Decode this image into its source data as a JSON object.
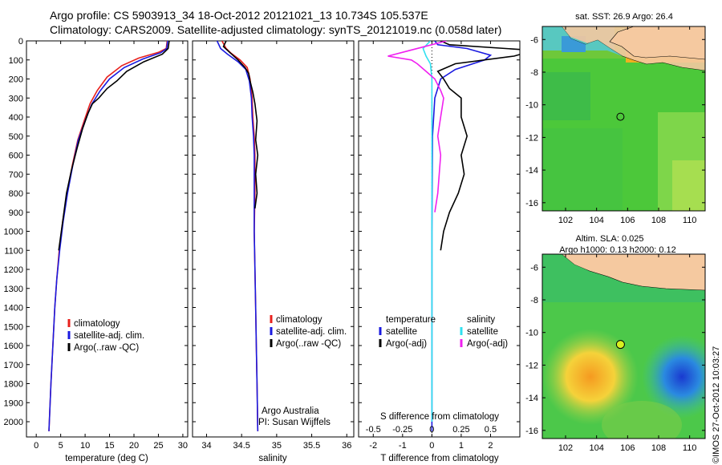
{
  "title_line1": "Argo profile: CS 5903913_34 18-Oct-2012 20121021_13 10.734S 105.537E",
  "title_line2": "Climatology: CARS2009. Satellite-adjusted climatology: synTS_20121019.nc (0.058d later)",
  "footer_vertical": "©IMOS 27-Oct-2012 10:03:27",
  "colors": {
    "climatology": "#e8201c",
    "satellite": "#1a1ae0",
    "argo": "#000000",
    "salinity_sat": "#30e0f0",
    "salinity_argo": "#f020f0",
    "land": "#f5c9a0"
  },
  "chart_data": [
    {
      "type": "line",
      "name": "temperature-profile",
      "xlabel": "temperature (deg C)",
      "ylabel": "",
      "xlim": [
        -2,
        31
      ],
      "ylim": [
        2080,
        0
      ],
      "x_ticks": [
        0,
        5,
        10,
        15,
        20,
        25,
        30
      ],
      "y_ticks": [
        0,
        100,
        200,
        300,
        400,
        500,
        600,
        700,
        800,
        900,
        1000,
        1100,
        1200,
        1300,
        1400,
        1500,
        1600,
        1700,
        1800,
        1900,
        2000
      ],
      "legend": [
        "climatology",
        "satellite-adj. clim.",
        "Argo(..raw -QC)"
      ],
      "series": [
        {
          "name": "climatology",
          "color": "#e8201c",
          "points": [
            [
              26.8,
              0
            ],
            [
              26.6,
              40
            ],
            [
              25,
              60
            ],
            [
              21,
              90
            ],
            [
              17.5,
              130
            ],
            [
              14.5,
              190
            ],
            [
              12.5,
              260
            ],
            [
              11,
              330
            ],
            [
              9.8,
              420
            ],
            [
              8.5,
              520
            ],
            [
              7.4,
              650
            ],
            [
              6.3,
              800
            ],
            [
              5.4,
              950
            ],
            [
              4.7,
              1100
            ],
            [
              4.2,
              1250
            ],
            [
              3.8,
              1400
            ],
            [
              3.4,
              1600
            ],
            [
              3.0,
              1800
            ],
            [
              2.6,
              2050
            ]
          ]
        },
        {
          "name": "satellite-adj. clim.",
          "color": "#1a1ae0",
          "points": [
            [
              26.9,
              0
            ],
            [
              26.7,
              40
            ],
            [
              25.5,
              62
            ],
            [
              21.8,
              95
            ],
            [
              18,
              140
            ],
            [
              15,
              200
            ],
            [
              13,
              265
            ],
            [
              11.3,
              335
            ],
            [
              10,
              420
            ],
            [
              8.6,
              520
            ],
            [
              7.5,
              650
            ],
            [
              6.4,
              800
            ],
            [
              5.5,
              950
            ],
            [
              4.8,
              1100
            ],
            [
              4.2,
              1250
            ],
            [
              3.8,
              1400
            ],
            [
              3.4,
              1600
            ],
            [
              3.0,
              1800
            ],
            [
              2.6,
              2050
            ]
          ]
        },
        {
          "name": "Argo(..raw -QC)",
          "color": "#000000",
          "points": [
            [
              27.2,
              0
            ],
            [
              27.0,
              40
            ],
            [
              25.8,
              70
            ],
            [
              22,
              110
            ],
            [
              18.5,
              160
            ],
            [
              16.5,
              210
            ],
            [
              14.5,
              250
            ],
            [
              12.8,
              300
            ],
            [
              11.5,
              330
            ],
            [
              10.6,
              380
            ],
            [
              9.5,
              460
            ],
            [
              8.4,
              560
            ],
            [
              7.2,
              680
            ],
            [
              6.2,
              800
            ],
            [
              5.4,
              950
            ],
            [
              4.6,
              1100
            ]
          ]
        }
      ]
    },
    {
      "type": "line",
      "name": "salinity-profile",
      "xlabel": "salinity",
      "ylabel": "",
      "xlim": [
        33.8,
        36.1
      ],
      "ylim": [
        2080,
        0
      ],
      "x_ticks": [
        34,
        34.5,
        35,
        35.5,
        36
      ],
      "legend": [
        "climatology",
        "satellite-adj. clim.",
        "Argo(..raw -QC)"
      ],
      "annotation": [
        "Argo Australia",
        "PI: Susan Wijffels"
      ],
      "series": [
        {
          "name": "climatology",
          "color": "#e8201c",
          "points": [
            [
              34.22,
              0
            ],
            [
              34.28,
              40
            ],
            [
              34.35,
              65
            ],
            [
              34.48,
              100
            ],
            [
              34.58,
              140
            ],
            [
              34.62,
              200
            ],
            [
              34.65,
              300
            ],
            [
              34.66,
              400
            ],
            [
              34.68,
              500
            ],
            [
              34.69,
              600
            ],
            [
              34.69,
              800
            ],
            [
              34.68,
              1000
            ],
            [
              34.69,
              1200
            ],
            [
              34.7,
              1400
            ],
            [
              34.71,
              1600
            ],
            [
              34.72,
              1800
            ],
            [
              34.73,
              2050
            ]
          ]
        },
        {
          "name": "satellite-adj. clim.",
          "color": "#1a1ae0",
          "points": [
            [
              34.15,
              0
            ],
            [
              34.2,
              40
            ],
            [
              34.3,
              70
            ],
            [
              34.45,
              110
            ],
            [
              34.56,
              150
            ],
            [
              34.61,
              210
            ],
            [
              34.64,
              300
            ],
            [
              34.65,
              400
            ],
            [
              34.67,
              500
            ],
            [
              34.68,
              600
            ],
            [
              34.68,
              800
            ],
            [
              34.68,
              1000
            ],
            [
              34.69,
              1200
            ],
            [
              34.7,
              1400
            ],
            [
              34.71,
              1600
            ],
            [
              34.72,
              1800
            ],
            [
              34.73,
              2050
            ]
          ]
        },
        {
          "name": "Argo(..raw -QC)",
          "color": "#000000",
          "points": [
            [
              34.28,
              0
            ],
            [
              34.24,
              30
            ],
            [
              34.33,
              60
            ],
            [
              34.45,
              100
            ],
            [
              34.55,
              140
            ],
            [
              34.6,
              170
            ],
            [
              34.62,
              210
            ],
            [
              34.66,
              270
            ],
            [
              34.69,
              330
            ],
            [
              34.72,
              420
            ],
            [
              34.7,
              520
            ],
            [
              34.73,
              600
            ],
            [
              34.7,
              700
            ],
            [
              34.72,
              800
            ],
            [
              34.69,
              880
            ]
          ]
        }
      ]
    },
    {
      "type": "line",
      "name": "difference-profile",
      "xlabel": "T difference from climatology",
      "xlabel_top": "S difference from climatology",
      "xlim": [
        -2.5,
        3
      ],
      "ylim": [
        2080,
        0
      ],
      "x_ticks": [
        -2,
        -1,
        0,
        1,
        2
      ],
      "x_ticks_top": [
        -0.5,
        -0.25,
        0,
        0.25,
        0.5
      ],
      "legend_temperature_heading": "temperature",
      "legend_salinity_heading": "salinity",
      "legend": [
        "satellite",
        "Argo(-adj)",
        "satellite",
        "Argo(-adj)"
      ],
      "series": [
        {
          "name": "temperature satellite",
          "color": "#1a1ae0",
          "points": [
            [
              0.1,
              0
            ],
            [
              0.2,
              20
            ],
            [
              1.2,
              40
            ],
            [
              2.0,
              75
            ],
            [
              1.8,
              100
            ],
            [
              0.8,
              150
            ],
            [
              0.3,
              200
            ],
            [
              0.1,
              300
            ],
            [
              0.02,
              500
            ],
            [
              0,
              1000
            ],
            [
              0,
              2050
            ]
          ]
        },
        {
          "name": "temperature Argo(-adj)",
          "color": "#000000",
          "points": [
            [
              0.3,
              0
            ],
            [
              0.6,
              20
            ],
            [
              3.5,
              50
            ],
            [
              2.8,
              80
            ],
            [
              0.8,
              120
            ],
            [
              0.2,
              160
            ],
            [
              0.4,
              200
            ],
            [
              0.6,
              250
            ],
            [
              1.0,
              300
            ],
            [
              1.0,
              400
            ],
            [
              1.2,
              500
            ],
            [
              1.0,
              600
            ],
            [
              1.1,
              700
            ],
            [
              0.9,
              800
            ],
            [
              0.6,
              900
            ],
            [
              0.4,
              1000
            ],
            [
              0.3,
              1100
            ]
          ]
        },
        {
          "name": "salinity satellite",
          "color": "#30e0f0",
          "points": [
            [
              -0.05,
              0
            ],
            [
              -0.3,
              40
            ],
            [
              -0.2,
              80
            ],
            [
              -0.05,
              120
            ],
            [
              0,
              200
            ],
            [
              0,
              400
            ],
            [
              0,
              700
            ],
            [
              0,
              1000
            ],
            [
              0,
              2000
            ]
          ]
        },
        {
          "name": "salinity Argo(-adj)",
          "color": "#f020f0",
          "points": [
            [
              0.5,
              0
            ],
            [
              -1.5,
              80
            ],
            [
              -0.7,
              100
            ],
            [
              -0.5,
              120
            ],
            [
              -0.2,
              160
            ],
            [
              0.1,
              200
            ],
            [
              0.3,
              260
            ],
            [
              0.4,
              300
            ],
            [
              0.3,
              400
            ],
            [
              0.2,
              500
            ],
            [
              0.3,
              600
            ],
            [
              0.25,
              700
            ],
            [
              0.2,
              800
            ],
            [
              0.1,
              900
            ]
          ]
        }
      ]
    },
    {
      "type": "heatmap",
      "name": "sst-map",
      "title": "sat. SST: 26.9 Argo: 26.4",
      "xlim": [
        100.5,
        111
      ],
      "ylim": [
        -16.5,
        -5.2
      ],
      "x_ticks": [
        102,
        104,
        106,
        108,
        110
      ],
      "y_ticks": [
        -6,
        -8,
        -10,
        -12,
        -14,
        -16
      ],
      "marker": [
        105.537,
        -10.734
      ]
    },
    {
      "type": "heatmap",
      "name": "sla-map",
      "title_line1": "Altim. SLA: 0.025",
      "title_line2": "Argo h1000: 0.13 h2000: 0.12",
      "xlim": [
        100.5,
        111
      ],
      "ylim": [
        -16.5,
        -5.2
      ],
      "x_ticks": [
        102,
        104,
        106,
        108,
        110
      ],
      "y_ticks": [
        -6,
        -8,
        -10,
        -12,
        -14,
        -16
      ],
      "marker": [
        105.537,
        -10.734
      ]
    }
  ]
}
